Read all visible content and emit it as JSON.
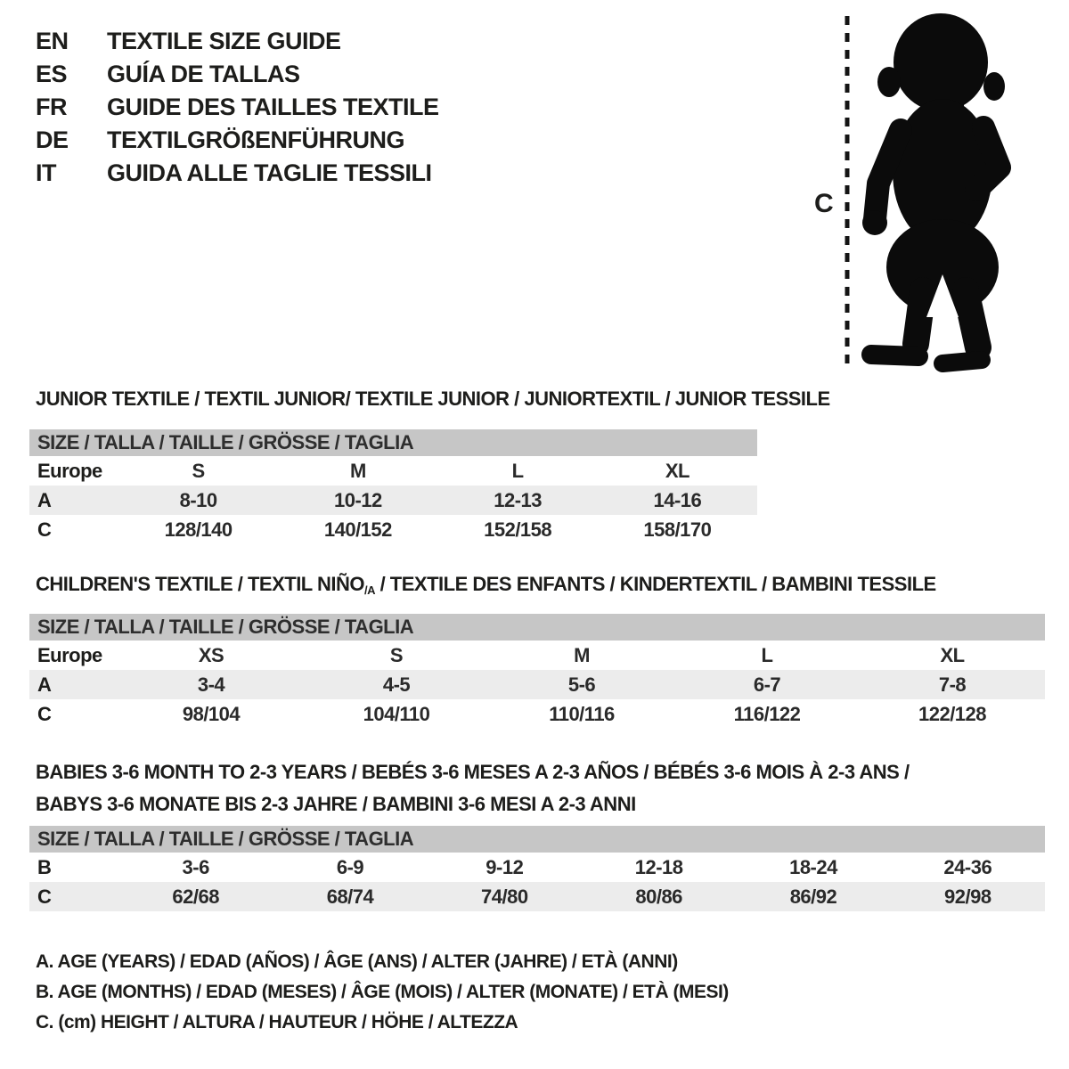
{
  "languages": [
    {
      "code": "EN",
      "title": "TEXTILE SIZE GUIDE"
    },
    {
      "code": "ES",
      "title": "GUÍA DE TALLAS"
    },
    {
      "code": "FR",
      "title": "GUIDE DES TAILLES TEXTILE"
    },
    {
      "code": "DE",
      "title": "TEXTILGRÖßENFÜHRUNG"
    },
    {
      "code": "IT",
      "title": "GUIDA ALLE TAGLIE TESSILI"
    }
  ],
  "figure": {
    "measure_label": "C"
  },
  "sections": {
    "junior": {
      "title": "JUNIOR TEXTILE / TEXTIL JUNIOR/ TEXTILE JUNIOR / JUNIORTEXTIL / JUNIOR TESSILE",
      "band": "SIZE / TALLA / TAILLE / GRÖSSE / TAGLIA",
      "rows": [
        {
          "label": "Europe",
          "values": [
            "S",
            "M",
            "L",
            "XL"
          ],
          "shade": false
        },
        {
          "label": "A",
          "values": [
            "8-10",
            "10-12",
            "12-13",
            "14-16"
          ],
          "shade": true
        },
        {
          "label": "C",
          "values": [
            "128/140",
            "140/152",
            "152/158",
            "158/170"
          ],
          "shade": false
        }
      ]
    },
    "children": {
      "title_pre": "CHILDREN'S TEXTILE / TEXTIL NIÑO",
      "title_sub": "/A",
      "title_post": " / TEXTILE DES ENFANTS / KINDERTEXTIL / BAMBINI TESSILE",
      "band": "SIZE / TALLA / TAILLE / GRÖSSE / TAGLIA",
      "rows": [
        {
          "label": "Europe",
          "values": [
            "XS",
            "S",
            "M",
            "L",
            "XL"
          ],
          "shade": false
        },
        {
          "label": "A",
          "values": [
            "3-4",
            "4-5",
            "5-6",
            "6-7",
            "7-8"
          ],
          "shade": true
        },
        {
          "label": "C",
          "values": [
            "98/104",
            "104/110",
            "110/116",
            "116/122",
            "122/128"
          ],
          "shade": false
        }
      ]
    },
    "babies": {
      "title_line1": "BABIES 3-6 MONTH TO 2-3 YEARS / BEBÉS 3-6 MESES A 2-3 AÑOS / BÉBÉS 3-6 MOIS À 2-3 ANS /",
      "title_line2": "BABYS 3-6 MONATE BIS 2-3 JAHRE / BAMBINI 3-6 MESI A 2-3 ANNI",
      "band": "SIZE / TALLA / TAILLE / GRÖSSE / TAGLIA",
      "rows": [
        {
          "label": "B",
          "values": [
            "3-6",
            "6-9",
            "9-12",
            "12-18",
            "18-24",
            "24-36"
          ],
          "shade": false
        },
        {
          "label": "C",
          "values": [
            "62/68",
            "68/74",
            "74/80",
            "80/86",
            "86/92",
            "92/98"
          ],
          "shade": true
        }
      ]
    }
  },
  "legend": {
    "a": "A. AGE (YEARS) / EDAD (AÑOS) / ÂGE (ANS) / ALTER (JAHRE) / ETÀ (ANNI)",
    "b": "B. AGE (MONTHS) / EDAD (MESES) / ÂGE (MOIS) / ALTER (MONATE) / ETÀ (MESI)",
    "c": "C. (cm) HEIGHT / ALTURA / HAUTEUR / HÖHE / ALTEZZA"
  },
  "colors": {
    "band": "#c6c6c6",
    "row_shade": "#ececec",
    "text": "#1d1d1b"
  }
}
